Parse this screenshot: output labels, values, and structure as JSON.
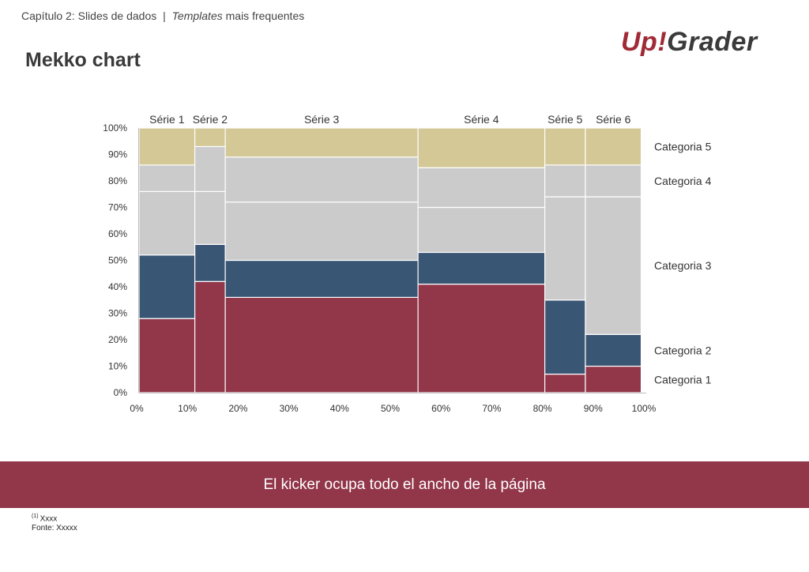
{
  "header": {
    "breadcrumb_prefix": "Capítulo 2: Slides de dados",
    "breadcrumb_sep": "|",
    "breadcrumb_italic": "Templates",
    "breadcrumb_suffix": " mais frequentes",
    "title": "Mekko chart"
  },
  "logo": {
    "up": "Up",
    "bang": "!",
    "grader": "Grader"
  },
  "colors": {
    "categoria_1": "#92364a",
    "categoria_2": "#3a5675",
    "categoria_3": "#cbcbcb",
    "categoria_4": "#cbcbcb",
    "categoria_5": "#d4c896"
  },
  "chart_data": {
    "type": "mekko",
    "title": "Mekko chart",
    "x_ticks": [
      "0%",
      "10%",
      "20%",
      "30%",
      "40%",
      "50%",
      "60%",
      "70%",
      "80%",
      "90%",
      "100%"
    ],
    "y_ticks": [
      "0%",
      "10%",
      "20%",
      "30%",
      "40%",
      "50%",
      "60%",
      "70%",
      "80%",
      "90%",
      "100%"
    ],
    "xlim": [
      0,
      100
    ],
    "ylim": [
      0,
      100
    ],
    "series": [
      {
        "name": "Série 1",
        "width": 11,
        "segments": [
          28,
          24,
          24,
          10,
          14
        ]
      },
      {
        "name": "Série 2",
        "width": 6,
        "segments": [
          42,
          14,
          20,
          17,
          7
        ]
      },
      {
        "name": "Série 3",
        "width": 38,
        "segments": [
          36,
          14,
          22,
          17,
          11
        ]
      },
      {
        "name": "Série 4",
        "width": 25,
        "segments": [
          41,
          12,
          17,
          15,
          15
        ]
      },
      {
        "name": "Série 5",
        "width": 8,
        "segments": [
          7,
          28,
          39,
          12,
          14
        ]
      },
      {
        "name": "Série 6",
        "width": 11,
        "segments": [
          10,
          12,
          52,
          12,
          14
        ]
      }
    ],
    "categories": [
      "Categoria 1",
      "Categoria 2",
      "Categoria 3",
      "Categoria 4",
      "Categoria 5"
    ],
    "legend_position": "right",
    "grid": false
  },
  "kicker": {
    "text": "El kicker ocupa todo el ancho de la página"
  },
  "footnote": {
    "marker": "(1)",
    "note": "Xxxx",
    "source": "Fonte: Xxxxx"
  }
}
